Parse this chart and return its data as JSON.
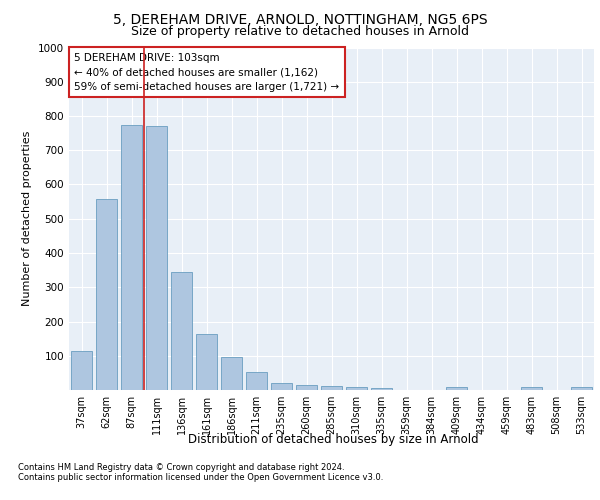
{
  "title1": "5, DEREHAM DRIVE, ARNOLD, NOTTINGHAM, NG5 6PS",
  "title2": "Size of property relative to detached houses in Arnold",
  "xlabel": "Distribution of detached houses by size in Arnold",
  "ylabel": "Number of detached properties",
  "categories": [
    "37sqm",
    "62sqm",
    "87sqm",
    "111sqm",
    "136sqm",
    "161sqm",
    "186sqm",
    "211sqm",
    "235sqm",
    "260sqm",
    "285sqm",
    "310sqm",
    "335sqm",
    "359sqm",
    "384sqm",
    "409sqm",
    "434sqm",
    "459sqm",
    "483sqm",
    "508sqm",
    "533sqm"
  ],
  "values": [
    113,
    557,
    775,
    770,
    345,
    163,
    97,
    53,
    20,
    15,
    13,
    10,
    7,
    0,
    0,
    10,
    0,
    0,
    10,
    0,
    10
  ],
  "bar_color": "#aec6e0",
  "bar_edge_color": "#6a9ec0",
  "vline_color": "#cc2222",
  "annotation_text": "5 DEREHAM DRIVE: 103sqm\n← 40% of detached houses are smaller (1,162)\n59% of semi-detached houses are larger (1,721) →",
  "annotation_box_color": "#ffffff",
  "annotation_box_edge_color": "#cc2222",
  "ylim": [
    0,
    1000
  ],
  "yticks": [
    0,
    100,
    200,
    300,
    400,
    500,
    600,
    700,
    800,
    900,
    1000
  ],
  "plot_bg_color": "#e8eff7",
  "footer_line1": "Contains HM Land Registry data © Crown copyright and database right 2024.",
  "footer_line2": "Contains public sector information licensed under the Open Government Licence v3.0.",
  "title1_fontsize": 10,
  "title2_fontsize": 9,
  "xlabel_fontsize": 8.5,
  "ylabel_fontsize": 8,
  "tick_fontsize": 7,
  "annotation_fontsize": 7.5,
  "footer_fontsize": 6
}
